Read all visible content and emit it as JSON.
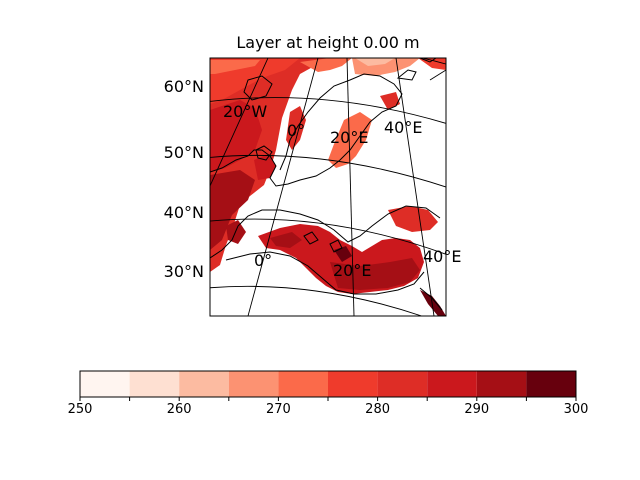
{
  "title": "Layer at height 0.00 m",
  "map": {
    "lat_labels": [
      "60°N",
      "50°N",
      "40°N",
      "30°N"
    ],
    "inline_lon_labels_upper": [
      "20°W",
      "0°",
      "20°E",
      "40°E"
    ],
    "inline_lon_labels_lower": [
      "0°",
      "20°E",
      "40°E"
    ],
    "colormap": "Reds"
  },
  "colorbar": {
    "ticks": [
      "250",
      "260",
      "270",
      "280",
      "290",
      "300"
    ],
    "levels": [
      250,
      255,
      260,
      265,
      270,
      275,
      280,
      285,
      290,
      295,
      300
    ],
    "colors": [
      "#fff5f0",
      "#fee0d2",
      "#fcbba1",
      "#fc9272",
      "#fb6a4a",
      "#ef3b2c",
      "#de2d26",
      "#cb181d",
      "#a50f15",
      "#67000d"
    ]
  }
}
